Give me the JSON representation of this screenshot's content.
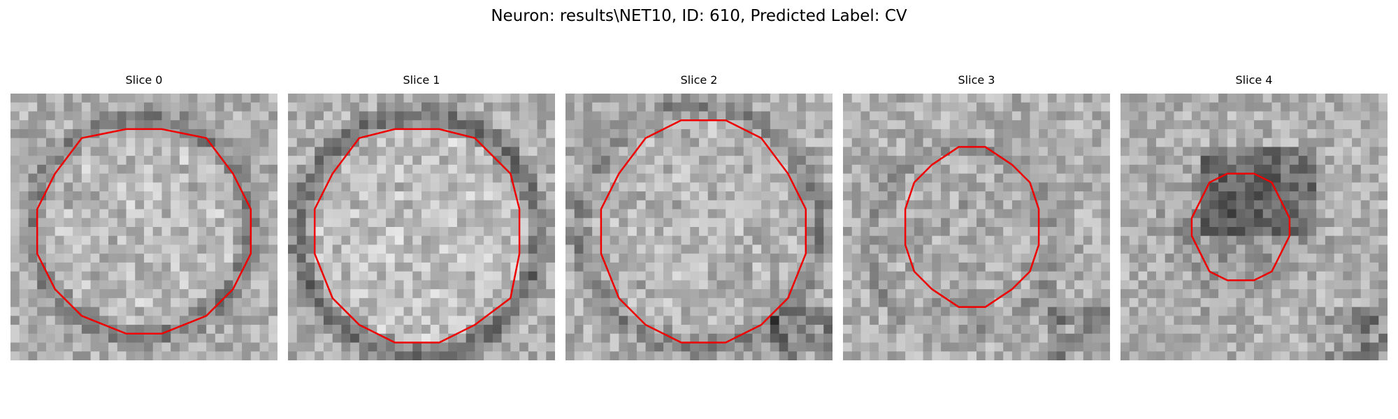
{
  "figure": {
    "title": "Neuron: results\\NET10, ID: 610, Predicted Label: CV"
  },
  "slices": [
    {
      "title": "Slice 0"
    },
    {
      "title": "Slice 1"
    },
    {
      "title": "Slice 2"
    },
    {
      "title": "Slice 3"
    },
    {
      "title": "Slice 4"
    }
  ],
  "contour_color": "#ee0000",
  "image_colormap": "grayscale"
}
